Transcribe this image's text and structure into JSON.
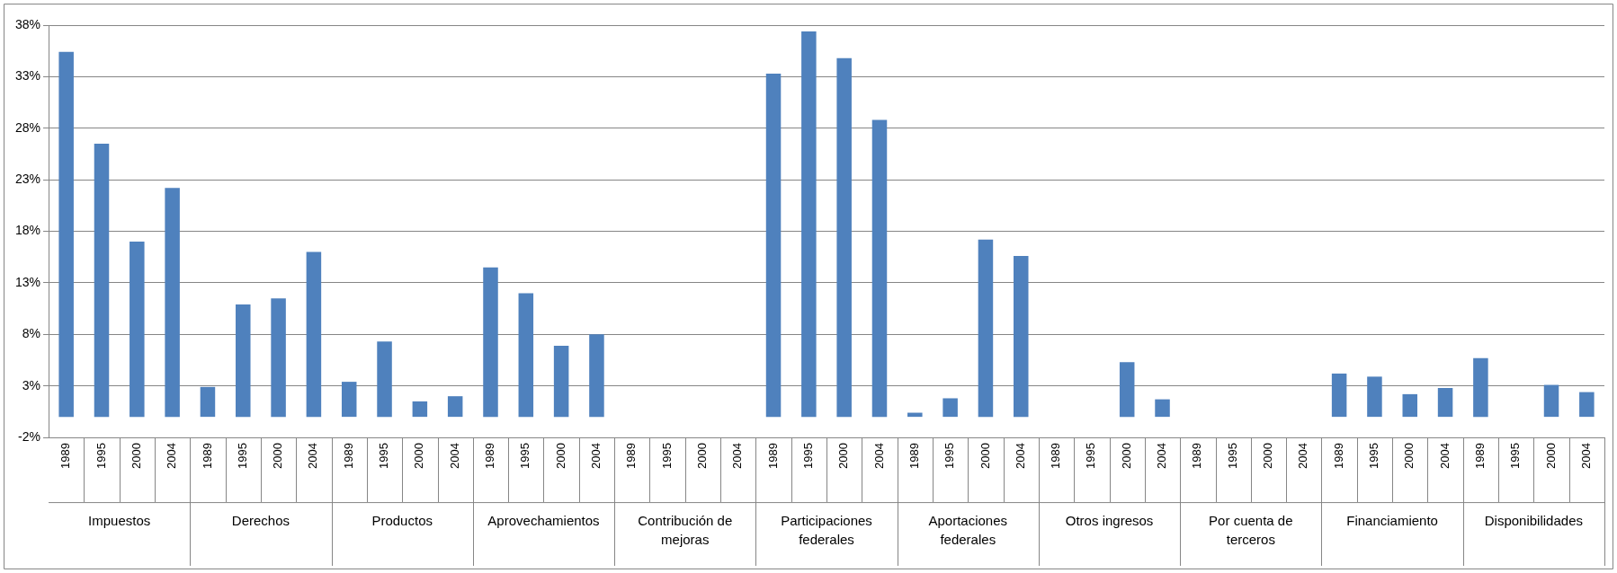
{
  "chart_data": {
    "type": "bar",
    "categories": [
      "1989",
      "1995",
      "2000",
      "2004",
      "1989",
      "1995",
      "2000",
      "2004",
      "1989",
      "1995",
      "2000",
      "2004",
      "1989",
      "1995",
      "2000",
      "2004",
      "1989",
      "1995",
      "2000",
      "2004",
      "1989",
      "1995",
      "2000",
      "2004",
      "1989",
      "1995",
      "2000",
      "2004",
      "1989",
      "1995",
      "2000",
      "2004",
      "1989",
      "1995",
      "2000",
      "2004",
      "1989",
      "1995",
      "2000",
      "2004",
      "1989",
      "1995",
      "2000",
      "2004"
    ],
    "values": [
      35.4,
      26.5,
      17.0,
      22.2,
      2.9,
      10.9,
      11.5,
      16.0,
      3.4,
      7.3,
      1.5,
      2.0,
      14.5,
      12.0,
      6.9,
      8.0,
      0,
      0,
      0,
      0,
      33.3,
      37.4,
      34.8,
      28.8,
      0.4,
      1.8,
      17.2,
      15.6,
      0,
      0,
      5.3,
      1.7,
      0,
      0,
      0,
      0,
      4.2,
      3.9,
      2.2,
      2.8,
      5.7,
      0,
      3.1,
      2.4
    ],
    "color": "#4f81bd",
    "ylim": [
      -2,
      38
    ],
    "yticks": [
      {
        "value": -2,
        "label": "-2%"
      },
      {
        "value": 3,
        "label": "3%"
      },
      {
        "value": 8,
        "label": "8%"
      },
      {
        "value": 13,
        "label": "13%"
      },
      {
        "value": 18,
        "label": "18%"
      },
      {
        "value": 23,
        "label": "23%"
      },
      {
        "value": 28,
        "label": "28%"
      },
      {
        "value": 33,
        "label": "33%"
      },
      {
        "value": 38,
        "label": "38%"
      }
    ],
    "grid": "y",
    "legend": false,
    "annotations": [
      "Impuestos",
      "Derechos",
      "Productos",
      "Aprovechamientos",
      "Contribución de mejoras",
      "Participaciones federales",
      "Aportaciones federales",
      "Otros ingresos",
      "Por cuenta de terceros",
      "Financiamiento",
      "Disponibilidades"
    ]
  }
}
